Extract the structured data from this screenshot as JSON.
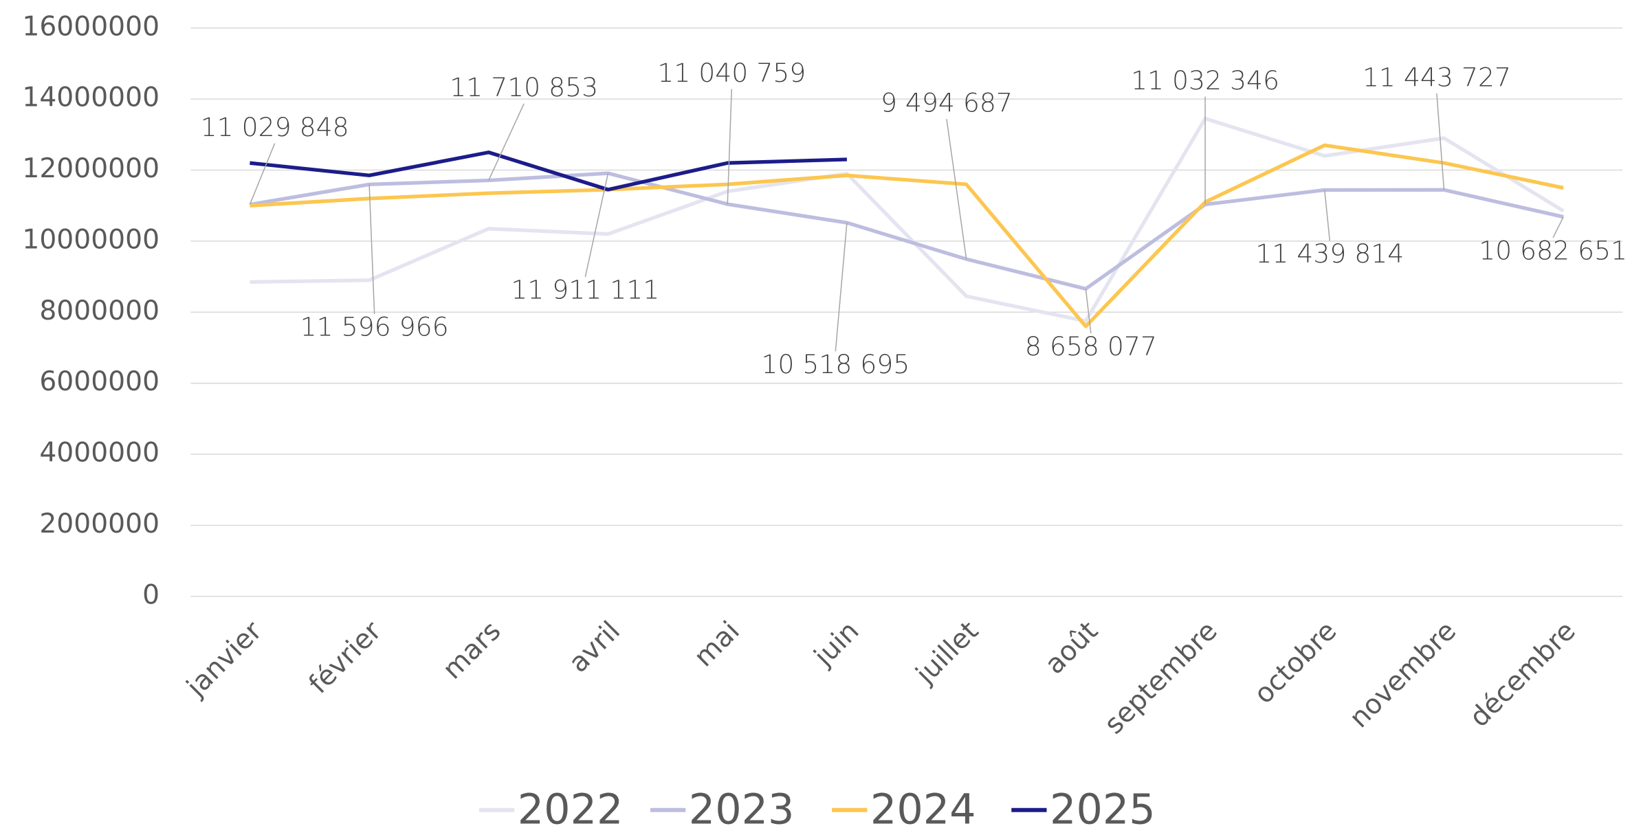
{
  "chart_data": {
    "type": "line",
    "categories": [
      "janvier",
      "février",
      "mars",
      "avril",
      "mai",
      "juin",
      "juillet",
      "août",
      "septembre",
      "octobre",
      "novembre",
      "décembre"
    ],
    "series": [
      {
        "name": "2022",
        "color": "#e4e4f1",
        "values": [
          8850000,
          8900000,
          10350000,
          10200000,
          11400000,
          11900000,
          8450000,
          7750000,
          13450000,
          12400000,
          12900000,
          10850000
        ]
      },
      {
        "name": "2023",
        "color": "#bdbde0",
        "values": [
          11029848,
          11596966,
          11710853,
          11911111,
          11040759,
          10518695,
          9494687,
          8658077,
          11032346,
          11439814,
          11443727,
          10682651
        ],
        "value_labels": [
          "11 029 848",
          "11 596 966",
          "11 710 853",
          "11 911 111",
          "11 040 759",
          "10 518 695",
          "9 494 687",
          "8 658 077",
          "11 032 346",
          "11 439 814",
          "11 443 727",
          "10 682 651"
        ]
      },
      {
        "name": "2024",
        "color": "#fcc650",
        "values": [
          11000000,
          11200000,
          11350000,
          11450000,
          11600000,
          11850000,
          11600000,
          7600000,
          11100000,
          12700000,
          12200000,
          11500000
        ]
      },
      {
        "name": "2025",
        "color": "#1c1c8a",
        "values": [
          12200000,
          11850000,
          12500000,
          11450000,
          12200000,
          12300000,
          null,
          null,
          null,
          null,
          null,
          null
        ]
      }
    ],
    "ylim": [
      0,
      16000000
    ],
    "yticks": [
      0,
      2000000,
      4000000,
      6000000,
      8000000,
      10000000,
      12000000,
      14000000,
      16000000
    ],
    "grid": true,
    "legend": "bottom"
  }
}
